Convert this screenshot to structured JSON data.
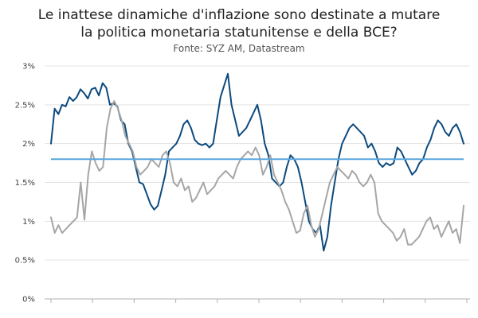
{
  "chart_data": {
    "type": "line",
    "title_lines": [
      "Le inattese dinamiche d'inflazione sono destinate a mutare",
      "la politica monetaria statunitense e della BCE?"
    ],
    "subtitle": "Fonte: SYZ AM, Datastream",
    "xlabel": "",
    "ylabel": "",
    "ylim": [
      0,
      3
    ],
    "yticks": [
      "0%",
      "0.5%",
      "1%",
      "1.5%",
      "2%",
      "2.5%",
      "3%"
    ],
    "grid": true,
    "legend": "none",
    "target_line": {
      "value": 1.8,
      "color": "#5ba6dd"
    },
    "series": [
      {
        "color": "#0c4a7e",
        "values": [
          2.0,
          2.45,
          2.38,
          2.5,
          2.48,
          2.6,
          2.55,
          2.6,
          2.7,
          2.65,
          2.58,
          2.7,
          2.72,
          2.62,
          2.78,
          2.72,
          2.5,
          2.52,
          2.48,
          2.3,
          2.25,
          2.0,
          1.9,
          1.7,
          1.5,
          1.48,
          1.35,
          1.22,
          1.15,
          1.2,
          1.4,
          1.6,
          1.9,
          1.95,
          2.0,
          2.1,
          2.25,
          2.3,
          2.2,
          2.05,
          2.0,
          1.98,
          2.0,
          1.95,
          2.0,
          2.3,
          2.6,
          2.75,
          2.9,
          2.5,
          2.3,
          2.1,
          2.15,
          2.2,
          2.3,
          2.4,
          2.5,
          2.3,
          2.0,
          1.85,
          1.55,
          1.5,
          1.45,
          1.5,
          1.7,
          1.85,
          1.8,
          1.7,
          1.5,
          1.25,
          1.0,
          0.9,
          0.85,
          0.95,
          0.62,
          0.8,
          1.2,
          1.5,
          1.8,
          2.0,
          2.1,
          2.2,
          2.25,
          2.2,
          2.15,
          2.1,
          1.95,
          2.0,
          1.9,
          1.75,
          1.7,
          1.75,
          1.72,
          1.75,
          1.95,
          1.9,
          1.8,
          1.7,
          1.6,
          1.65,
          1.75,
          1.8,
          1.95,
          2.05,
          2.2,
          2.3,
          2.25,
          2.15,
          2.1,
          2.2,
          2.25,
          2.15,
          2.0
        ],
        "values_note": "",
        "name": ""
      },
      {
        "color": "#a6a6a6",
        "values": [
          1.05,
          0.85,
          0.95,
          0.85,
          0.9,
          0.95,
          1.0,
          1.05,
          1.5,
          1.02,
          1.6,
          1.9,
          1.75,
          1.65,
          1.7,
          2.2,
          2.45,
          2.55,
          2.45,
          2.3,
          2.1,
          2.0,
          1.9,
          1.7,
          1.6,
          1.65,
          1.7,
          1.8,
          1.75,
          1.7,
          1.85,
          1.9,
          1.75,
          1.5,
          1.45,
          1.55,
          1.4,
          1.45,
          1.25,
          1.3,
          1.4,
          1.5,
          1.35,
          1.4,
          1.45,
          1.55,
          1.6,
          1.65,
          1.6,
          1.55,
          1.7,
          1.8,
          1.85,
          1.9,
          1.85,
          1.95,
          1.85,
          1.6,
          1.7,
          1.85,
          1.6,
          1.5,
          1.4,
          1.25,
          1.15,
          1.0,
          0.85,
          0.88,
          1.1,
          1.2,
          0.95,
          0.8,
          0.9,
          1.1,
          1.3,
          1.5,
          1.6,
          1.7,
          1.65,
          1.6,
          1.55,
          1.65,
          1.6,
          1.5,
          1.45,
          1.5,
          1.6,
          1.5,
          1.1,
          1.0,
          0.95,
          0.9,
          0.85,
          0.75,
          0.8,
          0.9,
          0.7,
          0.7,
          0.75,
          0.8,
          0.9,
          1.0,
          1.05,
          0.9,
          0.95,
          0.8,
          0.9,
          1.0,
          0.85,
          0.9,
          0.72,
          1.2
        ],
        "name": ""
      }
    ]
  }
}
